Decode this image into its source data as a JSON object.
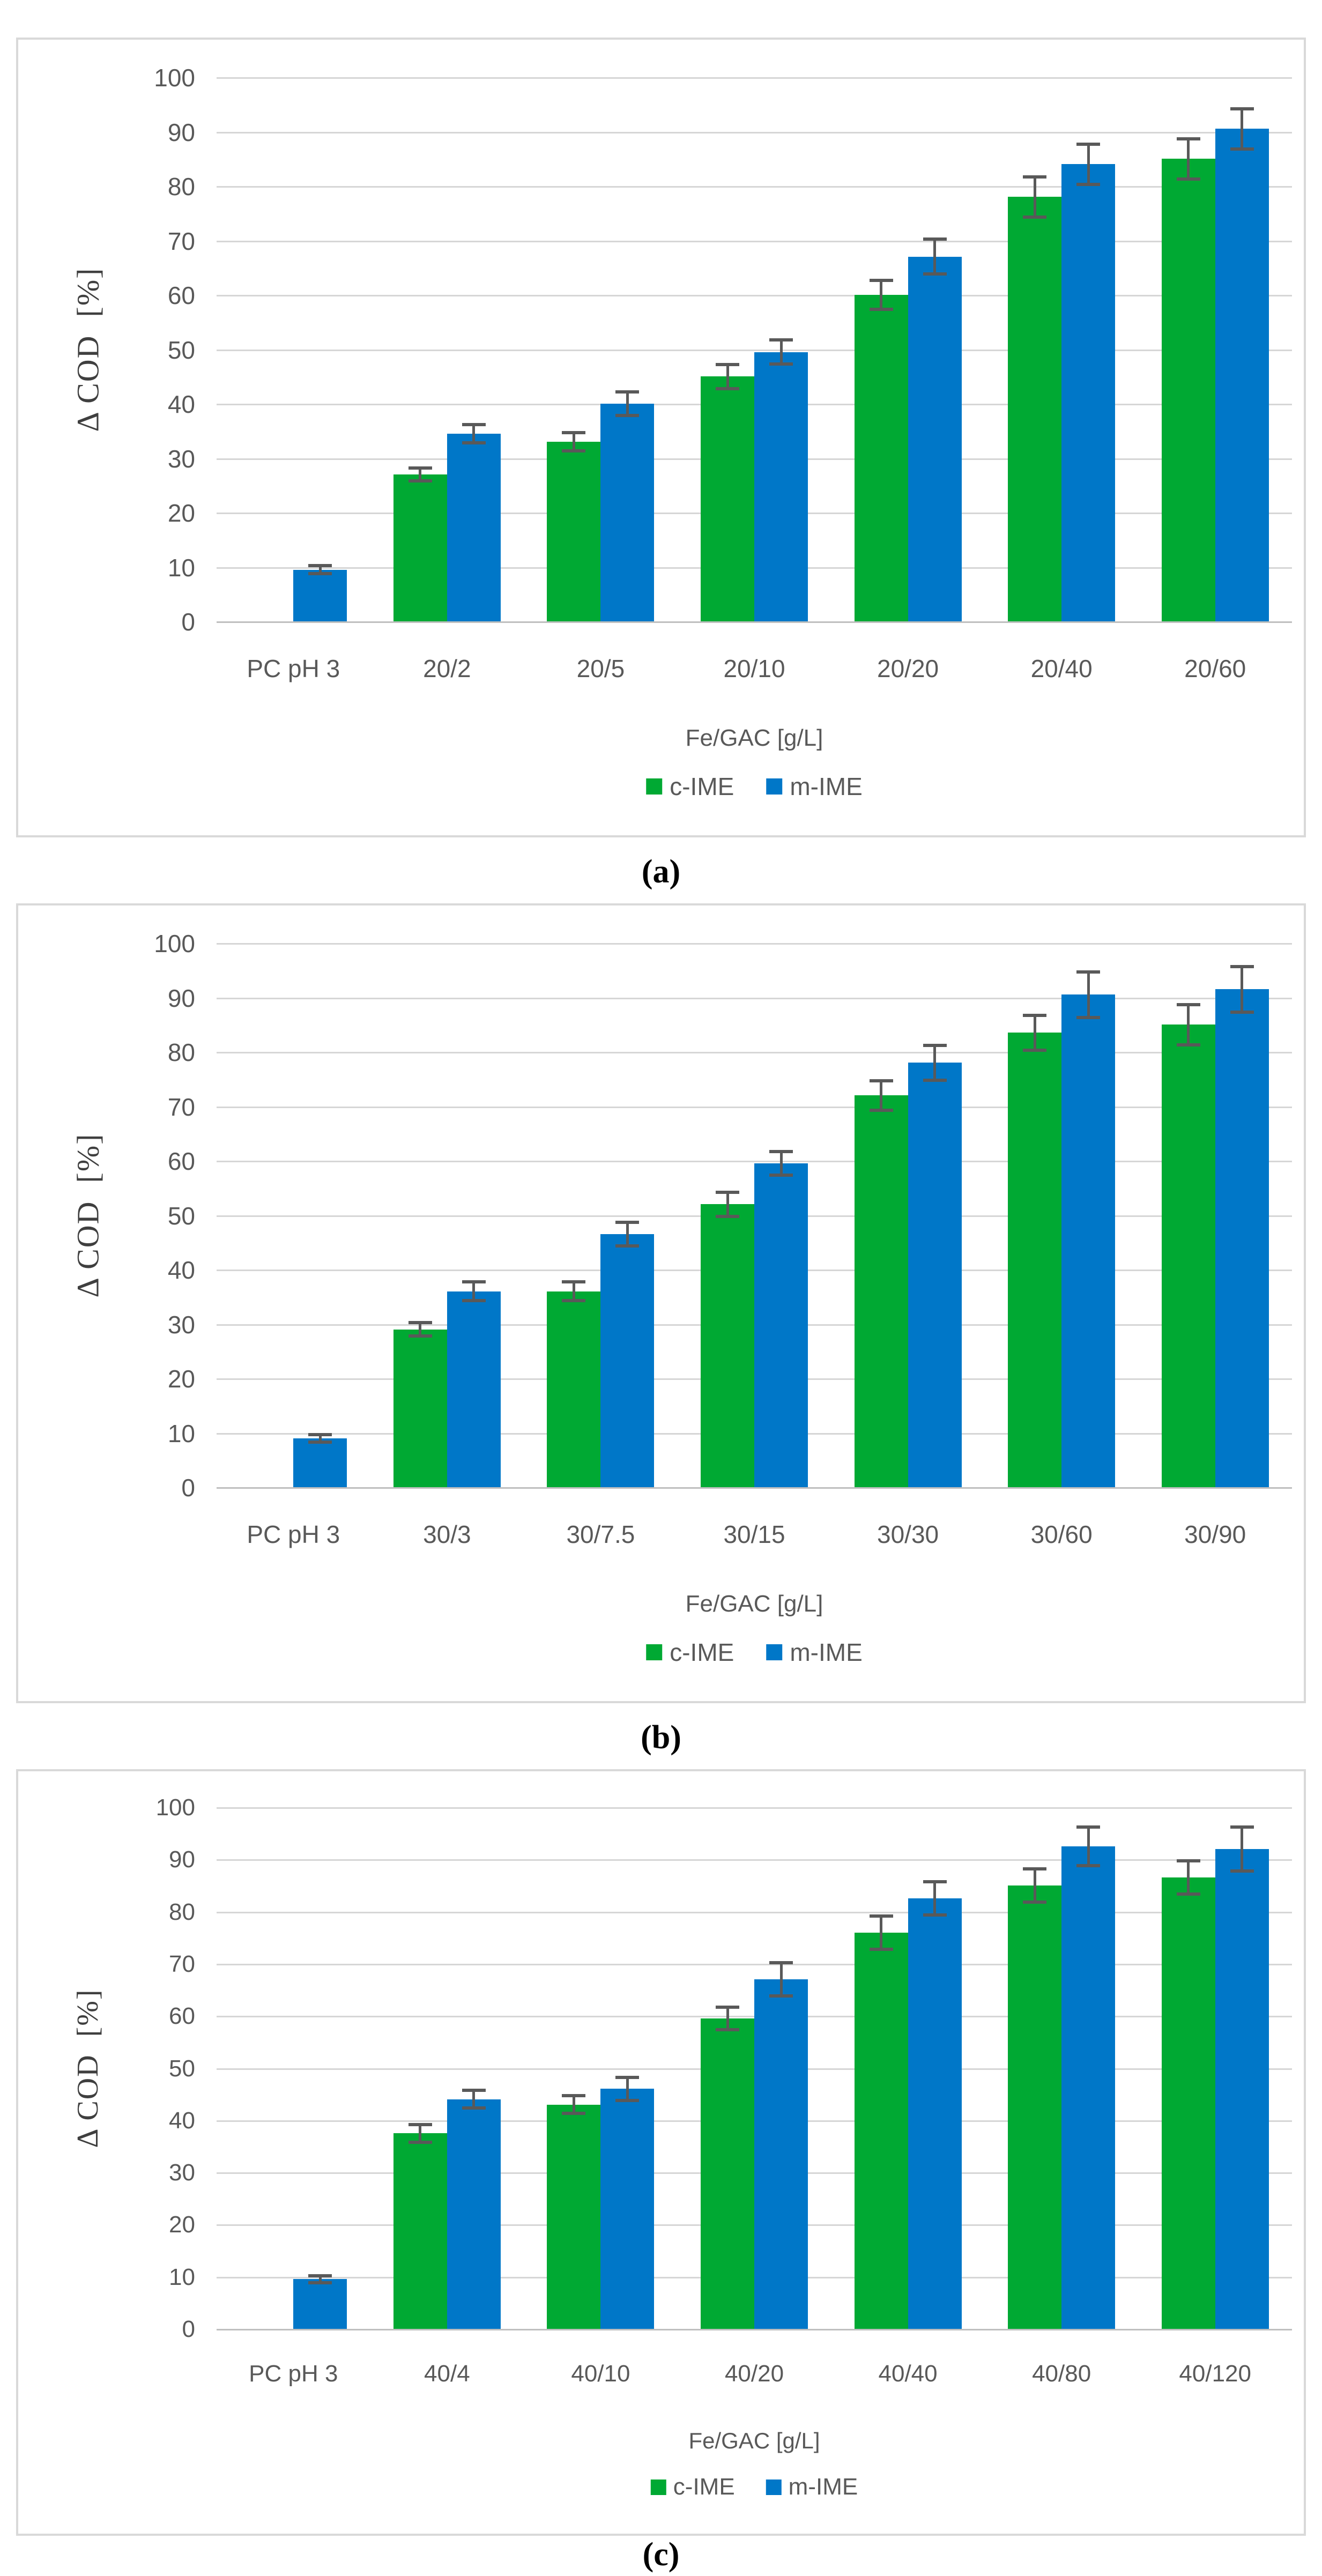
{
  "figure": {
    "background": "#ffffff",
    "colors": {
      "c_ime": "#00a933",
      "m_ime": "#0077c8",
      "gridline": "#d6d6d6",
      "baseline": "#bfbfbf",
      "error_bar": "#595959",
      "axis_text": "#595959",
      "y_title_text": "#3f3f3f",
      "panel_border": "#d9d9d9",
      "caption_text": "#000000"
    }
  },
  "legend": {
    "c_label": "c-IME",
    "m_label": "m-IME"
  },
  "chart_data": [
    {
      "type": "bar",
      "caption": "(a)",
      "ylabel": "Δ COD  [%]",
      "xlabel": "Fe/GAC [g/L]",
      "ylim": [
        0,
        100
      ],
      "yticks": [
        0,
        10,
        20,
        30,
        40,
        50,
        60,
        70,
        80,
        90,
        100
      ],
      "grid": true,
      "legend_position": "bottom",
      "categories": [
        "PC pH 3",
        "20/2",
        "20/5",
        "20/10",
        "20/20",
        "20/40",
        "20/60"
      ],
      "series": [
        {
          "name": "c-IME",
          "color_key": "c_ime",
          "values": [
            null,
            27,
            33,
            45,
            60,
            78,
            85
          ],
          "errors": [
            null,
            1.5,
            2,
            2.5,
            3,
            4,
            4
          ]
        },
        {
          "name": "m-IME",
          "color_key": "m_ime",
          "values": [
            9.5,
            34.5,
            40,
            49.5,
            67,
            84,
            90.5
          ],
          "errors": [
            1,
            2,
            2.5,
            2.5,
            3.5,
            4,
            4
          ]
        }
      ]
    },
    {
      "type": "bar",
      "caption": "(b)",
      "ylabel": "Δ COD  [%]",
      "xlabel": "Fe/GAC [g/L]",
      "ylim": [
        0,
        100
      ],
      "yticks": [
        0,
        10,
        20,
        30,
        40,
        50,
        60,
        70,
        80,
        90,
        100
      ],
      "grid": true,
      "legend_position": "bottom",
      "categories": [
        "PC pH 3",
        "30/3",
        "30/7.5",
        "30/15",
        "30/30",
        "30/60",
        "30/90"
      ],
      "series": [
        {
          "name": "c-IME",
          "color_key": "c_ime",
          "values": [
            null,
            29,
            36,
            52,
            72,
            83.5,
            85
          ],
          "errors": [
            null,
            1.5,
            2,
            2.5,
            3,
            3.5,
            4
          ]
        },
        {
          "name": "m-IME",
          "color_key": "m_ime",
          "values": [
            9,
            36,
            46.5,
            59.5,
            78,
            90.5,
            91.5
          ],
          "errors": [
            1,
            2,
            2.5,
            2.5,
            3.5,
            4.5,
            4.5
          ]
        }
      ]
    },
    {
      "type": "bar",
      "caption": "(c)",
      "ylabel": "Δ COD  [%]",
      "xlabel": "Fe/GAC [g/L]",
      "ylim": [
        0,
        100
      ],
      "yticks": [
        0,
        10,
        20,
        30,
        40,
        50,
        60,
        70,
        80,
        90,
        100
      ],
      "grid": true,
      "legend_position": "bottom",
      "categories": [
        "PC pH 3",
        "40/4",
        "40/10",
        "40/20",
        "40/40",
        "40/80",
        "40/120"
      ],
      "series": [
        {
          "name": "c-IME",
          "color_key": "c_ime",
          "values": [
            null,
            37.5,
            43,
            59.5,
            76,
            85,
            86.5
          ],
          "errors": [
            null,
            2,
            2,
            2.5,
            3.5,
            3.5,
            3.5
          ]
        },
        {
          "name": "m-IME",
          "color_key": "m_ime",
          "values": [
            9.5,
            44,
            46,
            67,
            82.5,
            92.5,
            92
          ],
          "errors": [
            1,
            2,
            2.5,
            3.5,
            3.5,
            4,
            4.5
          ]
        }
      ]
    }
  ]
}
